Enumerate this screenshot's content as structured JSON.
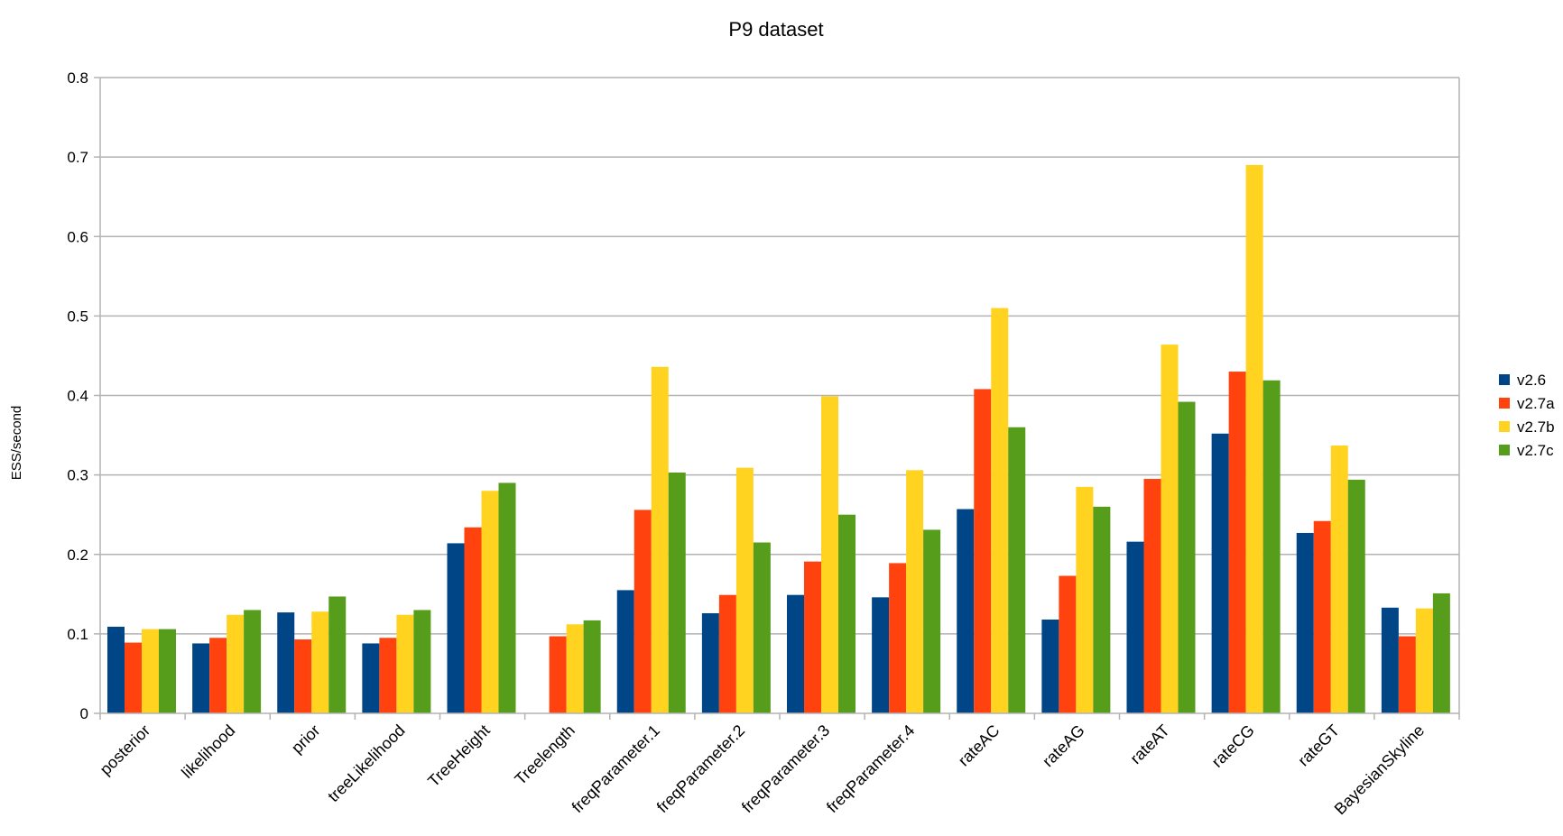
{
  "chart_data": {
    "type": "bar",
    "title": "P9 dataset",
    "xlabel": "",
    "ylabel": "ESS/second",
    "ylim": [
      0,
      0.8
    ],
    "yticks": [
      0,
      0.1,
      0.2,
      0.3,
      0.4,
      0.5,
      0.6,
      0.7,
      0.8
    ],
    "ytick_labels": [
      "0",
      "0.1",
      "0.2",
      "0.3",
      "0.4",
      "0.5",
      "0.6",
      "0.7",
      "0.8"
    ],
    "grid": true,
    "legend_position": "right",
    "categories": [
      "posterior",
      "likelihood",
      "prior",
      "treeLikelihood",
      "TreeHeight",
      "Treelength",
      "freqParameter.1",
      "freqParameter.2",
      "freqParameter.3",
      "freqParameter.4",
      "rateAC",
      "rateAG",
      "rateAT",
      "rateCG",
      "rateGT",
      "BayesianSkyline"
    ],
    "series": [
      {
        "name": "v2.6",
        "color": "#004586",
        "values": [
          0.109,
          0.088,
          0.127,
          0.088,
          0.214,
          0,
          0.155,
          0.126,
          0.149,
          0.146,
          0.257,
          0.118,
          0.216,
          0.352,
          0.227,
          0.133
        ]
      },
      {
        "name": "v2.7a",
        "color": "#ff420e",
        "values": [
          0.089,
          0.095,
          0.093,
          0.095,
          0.234,
          0.097,
          0.256,
          0.149,
          0.191,
          0.189,
          0.408,
          0.173,
          0.295,
          0.43,
          0.242,
          0.097
        ]
      },
      {
        "name": "v2.7b",
        "color": "#ffd320",
        "values": [
          0.106,
          0.124,
          0.128,
          0.124,
          0.28,
          0.112,
          0.436,
          0.309,
          0.399,
          0.306,
          0.51,
          0.285,
          0.464,
          0.69,
          0.337,
          0.132
        ]
      },
      {
        "name": "v2.7c",
        "color": "#579d1c",
        "values": [
          0.106,
          0.13,
          0.147,
          0.13,
          0.29,
          0.117,
          0.303,
          0.215,
          0.25,
          0.231,
          0.36,
          0.26,
          0.392,
          0.419,
          0.294,
          0.151
        ]
      }
    ]
  }
}
